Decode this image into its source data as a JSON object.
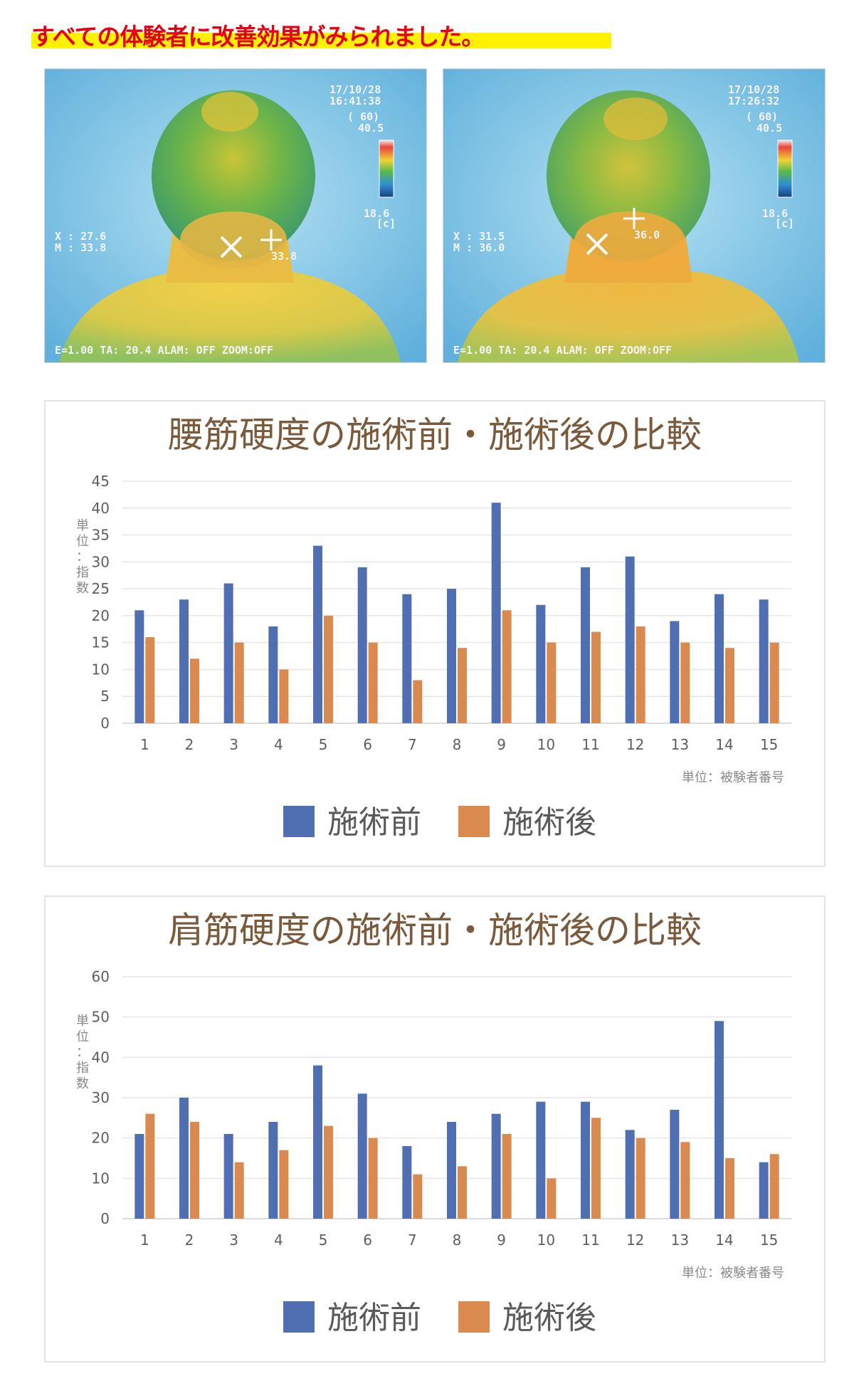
{
  "headline": "すべての体験者に改善効果がみられました。",
  "colors": {
    "headline_text": "#e60012",
    "highlight": "#fff200",
    "before": "#4f6fb2",
    "after": "#da8a4f",
    "title": "#7b5a3c"
  },
  "thermal_images": [
    {
      "name": "thermal-before",
      "datetime": [
        "17/10/28",
        "16:41:38"
      ],
      "range_top": [
        "( 60)",
        "40.5"
      ],
      "range_bottom": [
        "18.6",
        "[c]"
      ],
      "cursor_temp": "33.8",
      "readout": [
        "X : 27.6",
        "M : 33.8"
      ],
      "status_bar": "E=1.00 TA: 20.4 ALAM: OFF ZOOM:OFF"
    },
    {
      "name": "thermal-after",
      "datetime": [
        "17/10/28",
        "17:26:32"
      ],
      "range_top": [
        "( 60)",
        "40.5"
      ],
      "range_bottom": [
        "18.6",
        "[c]"
      ],
      "cursor_temp": "36.0",
      "readout": [
        "X : 31.5",
        "M : 36.0"
      ],
      "status_bar": "E=1.00 TA: 20.4 ALAM: OFF ZOOM:OFF"
    }
  ],
  "chart_data": [
    {
      "type": "bar",
      "title": "腰筋硬度の施術前・施術後の比較",
      "ylabel": "単位：指数",
      "xlabel": "単位：被験者番号",
      "categories": [
        "1",
        "2",
        "3",
        "4",
        "5",
        "6",
        "7",
        "8",
        "9",
        "10",
        "11",
        "12",
        "13",
        "14",
        "15"
      ],
      "yticks": [
        "0",
        "5",
        "10",
        "15",
        "20",
        "25",
        "30",
        "35",
        "40",
        "45"
      ],
      "ylim": [
        0,
        45
      ],
      "grid": true,
      "legend_position": "bottom",
      "series": [
        {
          "name": "施術前",
          "color": "#4f6fb2",
          "values": [
            21,
            23,
            26,
            18,
            33,
            29,
            24,
            25,
            41,
            22,
            29,
            31,
            19,
            24,
            23
          ]
        },
        {
          "name": "施術後",
          "color": "#da8a4f",
          "values": [
            16,
            12,
            15,
            10,
            20,
            15,
            8,
            14,
            21,
            15,
            17,
            18,
            15,
            14,
            15
          ]
        }
      ]
    },
    {
      "type": "bar",
      "title": "肩筋硬度の施術前・施術後の比較",
      "ylabel": "単位：指数",
      "xlabel": "単位：被験者番号",
      "categories": [
        "1",
        "2",
        "3",
        "4",
        "5",
        "6",
        "7",
        "8",
        "9",
        "10",
        "11",
        "12",
        "13",
        "14",
        "15"
      ],
      "yticks": [
        "0",
        "10",
        "20",
        "30",
        "40",
        "50",
        "60"
      ],
      "ylim": [
        0,
        60
      ],
      "grid": true,
      "legend_position": "bottom",
      "series": [
        {
          "name": "施術前",
          "color": "#4f6fb2",
          "values": [
            21,
            30,
            21,
            24,
            38,
            31,
            18,
            24,
            26,
            29,
            29,
            22,
            27,
            49,
            14
          ]
        },
        {
          "name": "施術後",
          "color": "#da8a4f",
          "values": [
            26,
            24,
            14,
            17,
            23,
            20,
            11,
            13,
            21,
            10,
            25,
            20,
            19,
            15,
            16
          ]
        }
      ]
    }
  ]
}
